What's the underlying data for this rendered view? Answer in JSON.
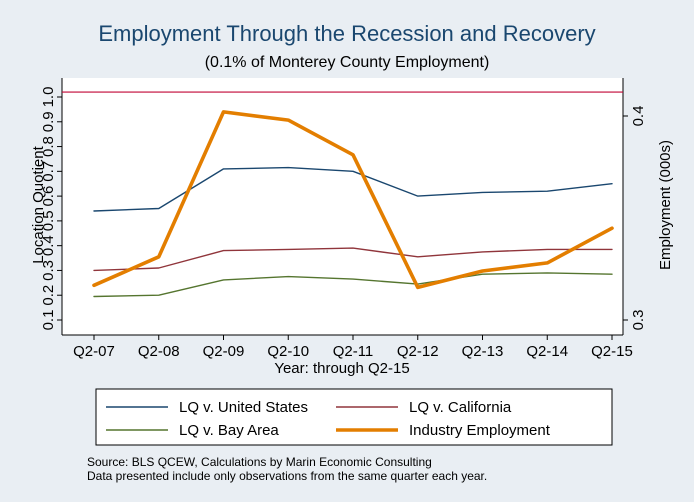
{
  "chart_data": {
    "type": "line",
    "title": "Employment Through the Recession and Recovery",
    "subtitle": "(0.1% of Monterey County Employment)",
    "xlabel": "Year: through Q2-15",
    "ylabel_left": "Location Quotient",
    "ylabel_right": "Employment (000s)",
    "categories": [
      "Q2-07",
      "Q2-08",
      "Q2-09",
      "Q2-10",
      "Q2-11",
      "Q2-12",
      "Q2-13",
      "Q2-14",
      "Q2-15"
    ],
    "y_left": {
      "ticks": [
        "0.1",
        "0.2",
        "0.3",
        "0.4",
        "0.5",
        "0.6",
        "0.7",
        "0.8",
        "0.9",
        "1.0"
      ],
      "tick_values": [
        0.1,
        0.2,
        0.3,
        0.4,
        0.5,
        0.6,
        0.7,
        0.8,
        0.9,
        1.0
      ],
      "range": [
        0.1,
        1.0
      ]
    },
    "y_right": {
      "ticks": [
        "0.3",
        "0.4"
      ],
      "tick_values": [
        0.3,
        0.4
      ],
      "range": [
        0.3,
        0.4
      ]
    },
    "reference_line": {
      "axis": "left",
      "value": 1.02,
      "color": "#c10534"
    },
    "series": [
      {
        "name": "LQ v. United States",
        "axis": "left",
        "color": "#1a476f",
        "width": "thin",
        "values": [
          0.54,
          0.55,
          0.71,
          0.715,
          0.7,
          0.6,
          0.615,
          0.62,
          0.65
        ]
      },
      {
        "name": "LQ v. California",
        "axis": "left",
        "color": "#90353b",
        "width": "thin",
        "values": [
          0.3,
          0.31,
          0.38,
          0.385,
          0.39,
          0.355,
          0.375,
          0.385,
          0.385
        ]
      },
      {
        "name": "LQ v. Bay Area",
        "axis": "left",
        "color": "#55752f",
        "width": "thin",
        "values": [
          0.195,
          0.2,
          0.262,
          0.275,
          0.265,
          0.245,
          0.285,
          0.29,
          0.285
        ]
      },
      {
        "name": "Industry Employment",
        "axis": "right",
        "color": "#e37e00",
        "width": "thick",
        "values": [
          0.317,
          0.331,
          0.402,
          0.398,
          0.381,
          0.316,
          0.324,
          0.328,
          0.345
        ]
      }
    ],
    "legend_position": "bottom",
    "grid": false
  },
  "notes": [
    "Source: BLS QCEW, Calculations by Marin Economic Consulting",
    "Data presented include only observations from the same quarter each year."
  ]
}
